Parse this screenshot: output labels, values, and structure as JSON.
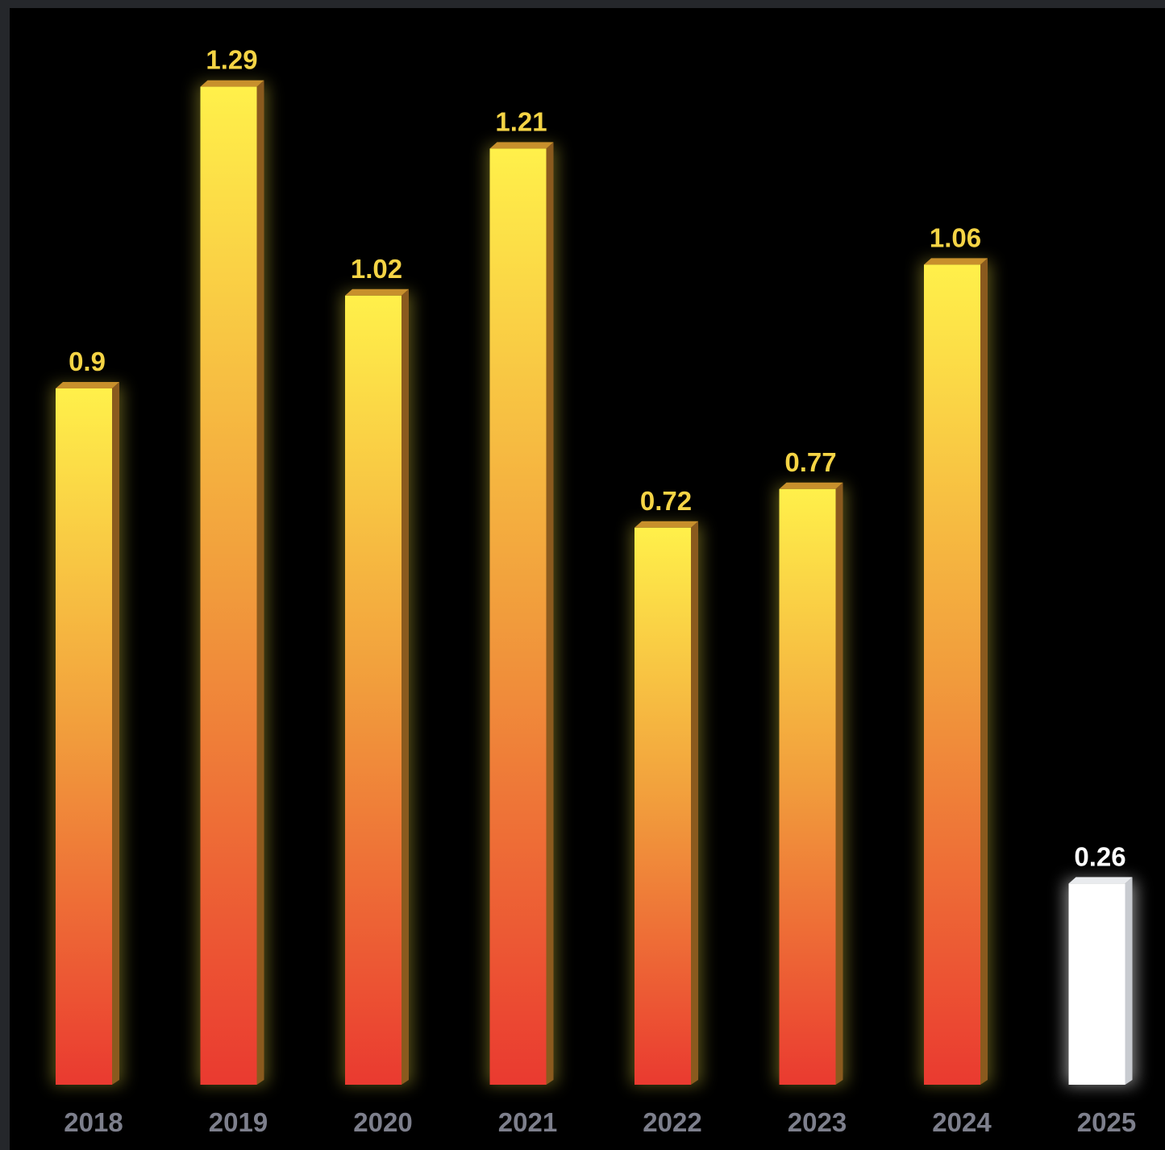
{
  "chart_data": {
    "type": "bar",
    "categories": [
      "2018",
      "2019",
      "2020",
      "2021",
      "2022",
      "2023",
      "2024",
      "2025"
    ],
    "values": [
      0.9,
      1.29,
      1.02,
      1.21,
      0.72,
      0.77,
      1.06,
      0.26
    ],
    "value_labels": [
      "0.9",
      "1.29",
      "1.02",
      "1.21",
      "0.72",
      "0.77",
      "1.06",
      "0.26"
    ],
    "highlighted_category": "2025",
    "title": "",
    "xlabel": "",
    "ylabel": "",
    "ylim": [
      0,
      1.35
    ],
    "grid": false,
    "legend": "none",
    "colors": {
      "background": "#000000",
      "bar_top": "#fff04a",
      "bar_mid": "#f19c3c",
      "bar_bottom": "#ea3a30",
      "bar_side": "#8a5a1e",
      "value_label": "#f5d445",
      "highlight_bar": "#ffffff",
      "highlight_side": "#c8cbd0",
      "highlight_label": "#ffffff",
      "tick_label": "#7d7f8c"
    }
  }
}
